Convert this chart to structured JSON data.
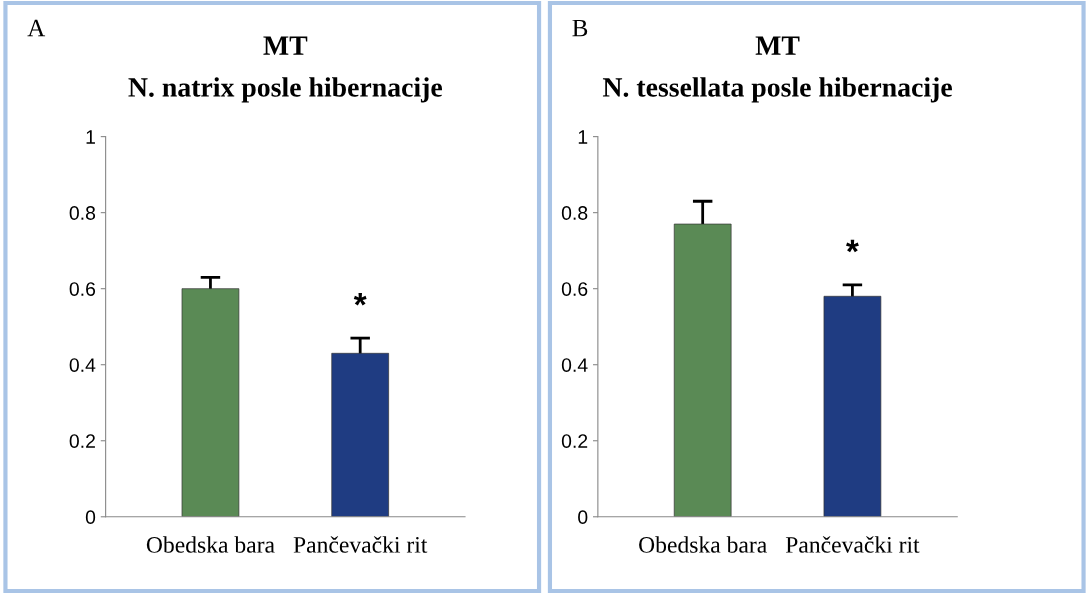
{
  "chart_data": [
    {
      "type": "bar",
      "title": "MT",
      "subtitle": "N. natrix posle hibernacije",
      "categories": [
        "Obedska bara",
        "Pančevački rit"
      ],
      "values": [
        0.6,
        0.43
      ],
      "colors": [
        "#5a8a55",
        "#1f3c82"
      ],
      "errors": [
        0.03,
        0.04
      ],
      "ylim": [
        0,
        1
      ],
      "yticks": [
        0,
        0.2,
        0.4,
        0.6,
        0.8,
        1
      ],
      "grid": false,
      "annotations": [
        "A",
        "*"
      ]
    },
    {
      "type": "bar",
      "title": "MT",
      "subtitle": "N. tessellata posle hibernacije",
      "categories": [
        "Obedska bara",
        "Pančevački rit"
      ],
      "values": [
        0.77,
        0.58
      ],
      "colors": [
        "#5a8a55",
        "#1f3c82"
      ],
      "errors": [
        0.06,
        0.03
      ],
      "ylim": [
        0,
        1
      ],
      "yticks": [
        0,
        0.2,
        0.4,
        0.6,
        0.8,
        1
      ],
      "grid": false,
      "annotations": [
        "B",
        "*"
      ]
    }
  ]
}
